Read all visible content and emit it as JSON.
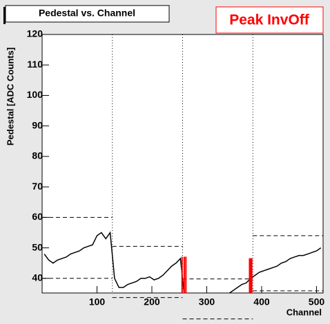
{
  "chart_data": {
    "type": "histogram",
    "title": "Pedestal vs. Channel",
    "annotation": "Peak InvOff",
    "x_label": "Channel",
    "y_label": "Pedestal [ADC Counts]",
    "xlim": [
      0,
      512
    ],
    "xticks": [
      100,
      200,
      300,
      400,
      500
    ],
    "ylim": [
      35.2,
      120
    ],
    "yticks": [
      40,
      50,
      60,
      70,
      80,
      90,
      100,
      110,
      120
    ],
    "color": "#000000",
    "x": [
      4,
      12,
      20,
      28,
      36,
      44,
      52,
      60,
      68,
      76,
      84,
      92,
      100,
      108,
      116,
      124,
      132,
      140,
      148,
      156,
      164,
      172,
      180,
      188,
      196,
      204,
      212,
      220,
      228,
      236,
      244,
      252,
      260,
      268,
      276,
      284,
      292,
      300,
      308,
      316,
      324,
      332,
      340,
      348,
      356,
      364,
      372,
      380,
      388,
      396,
      404,
      412,
      420,
      428,
      436,
      444,
      452,
      460,
      468,
      476,
      484,
      492,
      500,
      508
    ],
    "values": [
      48,
      46,
      45,
      46,
      46.5,
      47,
      48,
      48.5,
      49,
      50,
      50.5,
      51,
      54,
      55,
      53,
      55,
      40,
      37,
      37,
      38,
      38.5,
      39,
      40,
      40,
      40.5,
      39.5,
      40,
      41,
      42.5,
      44,
      45,
      46.5,
      33,
      32,
      32,
      32,
      32,
      32,
      32.5,
      33,
      33.5,
      34,
      35,
      36,
      37,
      38,
      38.5,
      40,
      41,
      42,
      42.5,
      43,
      43.5,
      44,
      45,
      45.5,
      46.5,
      47,
      47.5,
      47.5,
      48,
      48.5,
      49,
      50
    ],
    "dividers": [
      128,
      256,
      384
    ],
    "limits": [
      {
        "start": 0,
        "end": 128,
        "high": 60,
        "low": 40
      },
      {
        "start": 128,
        "end": 256,
        "high": 50.5,
        "low": 33.7
      },
      {
        "start": 256,
        "end": 384,
        "high": 39.8,
        "low": 26.7
      },
      {
        "start": 384,
        "end": 512,
        "high": 54,
        "low": 35.9
      }
    ],
    "marker_color": "#ff0000",
    "markers": {
      "x": [
        255,
        259,
        262,
        378,
        380,
        382
      ],
      "values": [
        47.1,
        47.1,
        47.1,
        46.6,
        46.6,
        46.6
      ]
    }
  }
}
